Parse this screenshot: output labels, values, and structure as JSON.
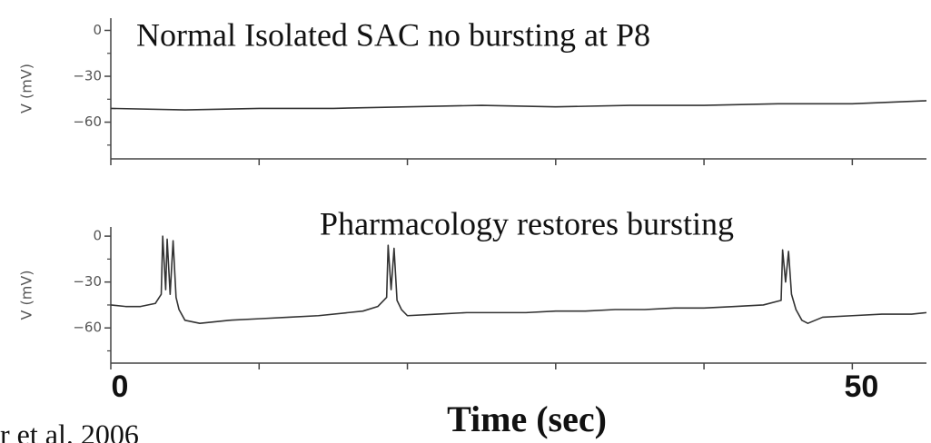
{
  "chart_data": [
    {
      "type": "line",
      "title": "Normal Isolated SAC no bursting at P8",
      "ylabel": "V (mV)",
      "ylim": [
        8,
        -84
      ],
      "yticks": [
        0,
        {
          "value": -30,
          "label": "−30"
        },
        {
          "value": -60,
          "label": "−60"
        }
      ],
      "yminor": [
        -15,
        -45,
        -75
      ],
      "xlim": [
        0,
        55
      ],
      "xticks": [
        0,
        10,
        20,
        30,
        40,
        50
      ],
      "show_xtick_labels": false,
      "series": [
        {
          "color": "#333333",
          "x": [
            0,
            5,
            10,
            15,
            20,
            25,
            30,
            35,
            40,
            45,
            50,
            55
          ],
          "values": [
            -51,
            -52,
            -51,
            -51,
            -50,
            -49,
            -50,
            -49,
            -49,
            -48,
            -48,
            -46
          ]
        }
      ]
    },
    {
      "type": "line",
      "title": "Pharmacology restores bursting",
      "ylabel": "V (mV)",
      "xlabel": "Time (sec)",
      "ylim": [
        6,
        -83
      ],
      "yticks": [
        0,
        {
          "value": -30,
          "label": "−30"
        },
        {
          "value": -60,
          "label": "−60"
        }
      ],
      "yminor": [
        -15,
        -45,
        -75
      ],
      "xlim": [
        0,
        55
      ],
      "xticks": [
        0,
        {
          "value": 10,
          "label": null
        },
        {
          "value": 20,
          "label": null
        },
        {
          "value": 30,
          "label": null
        },
        {
          "value": 40,
          "label": null
        },
        50
      ],
      "show_xtick_labels": true,
      "series": [
        {
          "color": "#333333",
          "x": [
            0,
            1,
            2,
            3,
            3.4,
            3.5,
            3.7,
            3.8,
            4.0,
            4.2,
            4.4,
            4.6,
            5,
            6,
            8,
            10,
            12,
            14,
            16,
            17,
            18,
            18.6,
            18.7,
            18.9,
            19.1,
            19.3,
            19.6,
            20,
            22,
            24,
            26,
            28,
            30,
            32,
            34,
            36,
            38,
            40,
            42,
            44,
            45.2,
            45.3,
            45.5,
            45.7,
            45.9,
            46.2,
            46.6,
            47,
            48,
            50,
            52,
            54,
            55
          ],
          "values": [
            -45,
            -46,
            -46,
            -44,
            -38,
            0,
            -35,
            -2,
            -38,
            -3,
            -40,
            -48,
            -55,
            -57,
            -55,
            -54,
            -53,
            -52,
            -50,
            -49,
            -46,
            -40,
            -6,
            -35,
            -8,
            -42,
            -48,
            -52,
            -51,
            -50,
            -50,
            -50,
            -49,
            -49,
            -48,
            -48,
            -47,
            -47,
            -46,
            -45,
            -42,
            -9,
            -30,
            -10,
            -38,
            -48,
            -55,
            -57,
            -53,
            -52,
            -51,
            -51,
            -50
          ]
        }
      ]
    }
  ],
  "citation": "r et al. 2006"
}
